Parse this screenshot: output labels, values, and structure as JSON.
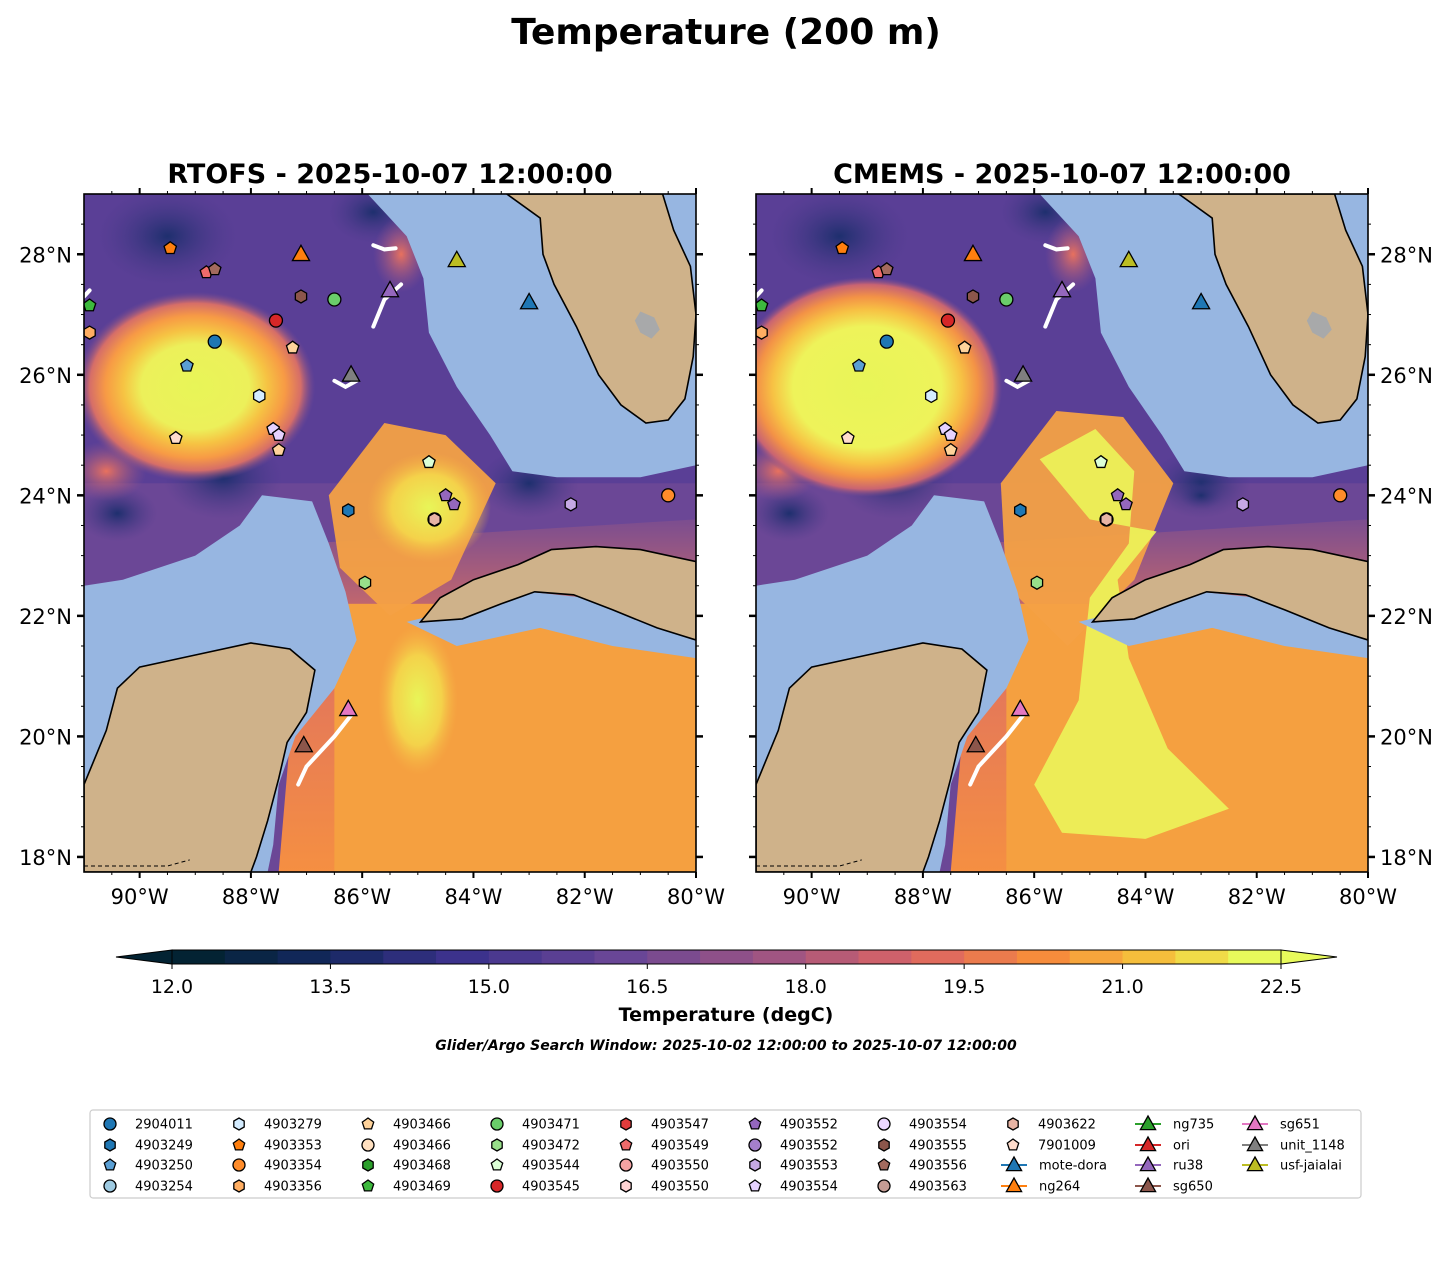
{
  "title": "Temperature (200 m)",
  "panels": [
    {
      "id": "rtofs",
      "title": "RTOFS - 2025-10-07 12:00:00"
    },
    {
      "id": "cmems",
      "title": "CMEMS - 2025-10-07 12:00:00"
    }
  ],
  "map": {
    "lon_range": [
      -91.0,
      -80.0
    ],
    "lat_range": [
      17.75,
      29.0
    ],
    "lon_ticks": [
      "90°W",
      "88°W",
      "86°W",
      "84°W",
      "82°W",
      "80°W"
    ],
    "lat_ticks": [
      "18°N",
      "20°N",
      "22°N",
      "24°N",
      "26°N",
      "28°N"
    ]
  },
  "colorbar": {
    "label": "Temperature (degC)",
    "min": 12.0,
    "max": 22.5,
    "step": 0.5,
    "extend": "both",
    "ticks": [
      "12.0",
      "13.5",
      "15.0",
      "16.5",
      "18.0",
      "19.5",
      "21.0",
      "22.5"
    ]
  },
  "search_window": "Glider/Argo Search Window: 2025-10-02 12:00:00 to 2025-10-07 12:00:00",
  "colors": {
    "ocean_mask": "#97b6e1",
    "land": "#cfb28a",
    "lake": "#a8a9aa"
  },
  "legend": [
    {
      "label": "2904011",
      "marker": "circle",
      "color": "#1f77b4"
    },
    {
      "label": "4903249",
      "marker": "hexagon",
      "color": "#1f77b4"
    },
    {
      "label": "4903250",
      "marker": "pentagon",
      "color": "#5a9fd4"
    },
    {
      "label": "4903254",
      "marker": "circle",
      "color": "#9ecae1"
    },
    {
      "label": "4903279",
      "marker": "hexagon",
      "color": "#d4ecff"
    },
    {
      "label": "4903353",
      "marker": "pentagon",
      "color": "#ff7f0e"
    },
    {
      "label": "4903354",
      "marker": "circle",
      "color": "#ff8c2a"
    },
    {
      "label": "4903356",
      "marker": "hexagon",
      "color": "#ffae62"
    },
    {
      "label": "4903466",
      "marker": "pentagon",
      "color": "#ffd39b"
    },
    {
      "label": "4903466",
      "marker": "circle",
      "color": "#ffe0c0"
    },
    {
      "label": "4903468",
      "marker": "hexagon",
      "color": "#2ca02c"
    },
    {
      "label": "4903469",
      "marker": "pentagon",
      "color": "#3db93d"
    },
    {
      "label": "4903471",
      "marker": "circle",
      "color": "#6acd6a"
    },
    {
      "label": "4903472",
      "marker": "hexagon",
      "color": "#98df8a"
    },
    {
      "label": "4903544",
      "marker": "pentagon",
      "color": "#dcffd6"
    },
    {
      "label": "4903545",
      "marker": "circle",
      "color": "#d62728"
    },
    {
      "label": "4903547",
      "marker": "hexagon",
      "color": "#e03c3c"
    },
    {
      "label": "4903549",
      "marker": "pentagon",
      "color": "#ee6b6b"
    },
    {
      "label": "4903550",
      "marker": "circle",
      "color": "#f4a3a3"
    },
    {
      "label": "4903550",
      "marker": "hexagon",
      "color": "#ffd3d3"
    },
    {
      "label": "4903552",
      "marker": "pentagon",
      "color": "#9467bd"
    },
    {
      "label": "4903552",
      "marker": "circle",
      "color": "#a57fcc"
    },
    {
      "label": "4903553",
      "marker": "hexagon",
      "color": "#c5a8e4"
    },
    {
      "label": "4903554",
      "marker": "pentagon",
      "color": "#e6d2ff"
    },
    {
      "label": "4903554",
      "marker": "circle",
      "color": "#ecd6ff"
    },
    {
      "label": "4903555",
      "marker": "hexagon",
      "color": "#8c564b"
    },
    {
      "label": "4903556",
      "marker": "pentagon",
      "color": "#a36a5e"
    },
    {
      "label": "4903563",
      "marker": "circle",
      "color": "#c49c94"
    },
    {
      "label": "4903622",
      "marker": "hexagon",
      "color": "#e7b4a4"
    },
    {
      "label": "7901009",
      "marker": "pentagon",
      "color": "#ffdccc"
    },
    {
      "label": "mote-dora",
      "marker": "line-triangle",
      "color": "#1f77b4"
    },
    {
      "label": "ng264",
      "marker": "line-triangle",
      "color": "#ff7f0e"
    },
    {
      "label": "ng735",
      "marker": "line-triangle",
      "color": "#2ca02c"
    },
    {
      "label": "ori",
      "marker": "line-triangle",
      "color": "#d62728"
    },
    {
      "label": "ru38",
      "marker": "line-triangle",
      "color": "#9467bd"
    },
    {
      "label": "sg650",
      "marker": "line-triangle",
      "color": "#8c564b"
    },
    {
      "label": "sg651",
      "marker": "line-triangle",
      "color": "#e377c2"
    },
    {
      "label": "unit_1148",
      "marker": "line-triangle",
      "color": "#7f7f7f"
    },
    {
      "label": "usf-jaialai",
      "marker": "line-triangle",
      "color": "#bcbd22"
    }
  ],
  "observations": [
    {
      "label": "2904011",
      "lon": -88.65,
      "lat": 26.55
    },
    {
      "label": "4903249",
      "lon": -86.25,
      "lat": 23.75
    },
    {
      "label": "4903250",
      "lon": -89.15,
      "lat": 26.15
    },
    {
      "label": "4903279",
      "lon": -87.85,
      "lat": 25.65
    },
    {
      "label": "4903353",
      "lon": -89.45,
      "lat": 28.1
    },
    {
      "label": "4903354",
      "lon": -80.5,
      "lat": 24.0
    },
    {
      "label": "4903356",
      "lon": -90.9,
      "lat": 26.7
    },
    {
      "label": "4903466",
      "lon": -87.25,
      "lat": 26.45
    },
    {
      "label": "4903466",
      "lon": -87.5,
      "lat": 24.75
    },
    {
      "label": "4903469",
      "lon": -90.9,
      "lat": 27.15
    },
    {
      "label": "4903471",
      "lon": -86.5,
      "lat": 27.25
    },
    {
      "label": "4903472",
      "lon": -85.95,
      "lat": 22.55
    },
    {
      "label": "4903544",
      "lon": -84.8,
      "lat": 24.55
    },
    {
      "label": "4903545",
      "lon": -87.55,
      "lat": 26.9
    },
    {
      "label": "4903549",
      "lon": -88.8,
      "lat": 27.7
    },
    {
      "label": "4903550",
      "lon": -84.7,
      "lat": 23.6
    },
    {
      "label": "4903552",
      "lon": -84.5,
      "lat": 24.0
    },
    {
      "label": "4903552",
      "lon": -84.35,
      "lat": 23.85
    },
    {
      "label": "4903553",
      "lon": -82.25,
      "lat": 23.85
    },
    {
      "label": "4903554",
      "lon": -87.6,
      "lat": 25.1
    },
    {
      "label": "4903554",
      "lon": -87.5,
      "lat": 25.0
    },
    {
      "label": "4903555",
      "lon": -87.1,
      "lat": 27.3
    },
    {
      "label": "4903556",
      "lon": -88.65,
      "lat": 27.75
    },
    {
      "label": "4903622",
      "lon": -84.7,
      "lat": 23.6
    },
    {
      "label": "7901009",
      "lon": -89.35,
      "lat": 24.95
    }
  ],
  "gliders": [
    {
      "label": "mote-dora",
      "lon": -83.0,
      "lat": 27.2
    },
    {
      "label": "ng264",
      "lon": -87.1,
      "lat": 28.0
    },
    {
      "label": "ru38",
      "lon": -85.5,
      "lat": 27.4
    },
    {
      "label": "sg650",
      "lon": -87.05,
      "lat": 19.85
    },
    {
      "label": "sg651",
      "lon": -86.25,
      "lat": 20.45
    },
    {
      "label": "unit_1148",
      "lon": -86.2,
      "lat": 26.0
    },
    {
      "label": "usf-jaialai",
      "lon": -84.3,
      "lat": 27.9
    }
  ]
}
